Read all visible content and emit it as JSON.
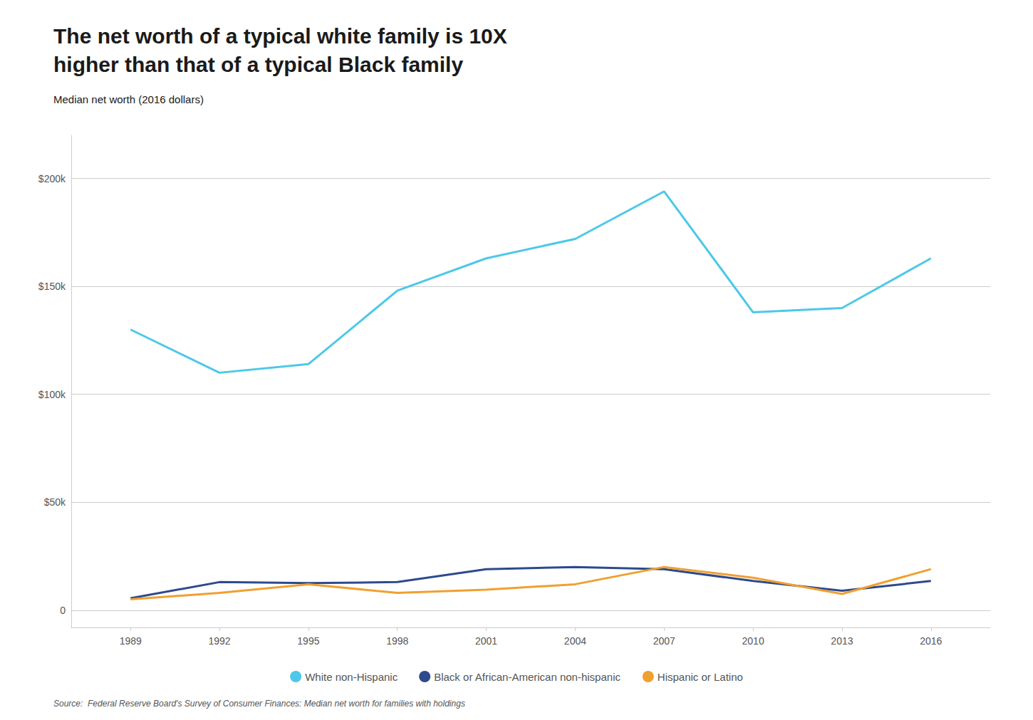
{
  "chart_data": {
    "type": "line",
    "title": "The net worth of a typical white family is 10X\nhigher than that of a typical Black family",
    "subtitle": "Median net worth (2016 dollars)",
    "annotations": [
      "Source:  Federal Reserve Board's Survey of Consumer Finances: Median net worth for families with holdings"
    ],
    "x": [
      1989,
      1992,
      1995,
      1998,
      2001,
      2004,
      2007,
      2010,
      2013,
      2016
    ],
    "series": [
      {
        "name": "White non-Hispanic",
        "color": "#4DC8E8",
        "values": [
          130000,
          110000,
          114000,
          148000,
          163000,
          172000,
          194000,
          138000,
          140000,
          163000
        ]
      },
      {
        "name": "Black or African-American non-hispanic",
        "color": "#2E4A8C",
        "values": [
          5500,
          13000,
          12500,
          13000,
          19000,
          20000,
          19000,
          13500,
          9000,
          13500
        ]
      },
      {
        "name": "Hispanic or Latino",
        "color": "#F0A030",
        "values": [
          5000,
          8000,
          12000,
          8000,
          9500,
          12000,
          20000,
          15000,
          7500,
          19000
        ]
      }
    ],
    "xlim": [
      1987,
      2018
    ],
    "xticks": [
      1989,
      1992,
      1995,
      1998,
      2001,
      2004,
      2007,
      2010,
      2013,
      2016
    ],
    "ylim": [
      -8000,
      220000
    ],
    "yticks": [
      0,
      {
        "value": 50000,
        "label": "$50k"
      },
      {
        "value": 100000,
        "label": "$100k"
      },
      {
        "value": 150000,
        "label": "$150k"
      },
      {
        "value": 200000,
        "label": "$200k"
      }
    ],
    "grid": true,
    "legend": "bottom"
  }
}
